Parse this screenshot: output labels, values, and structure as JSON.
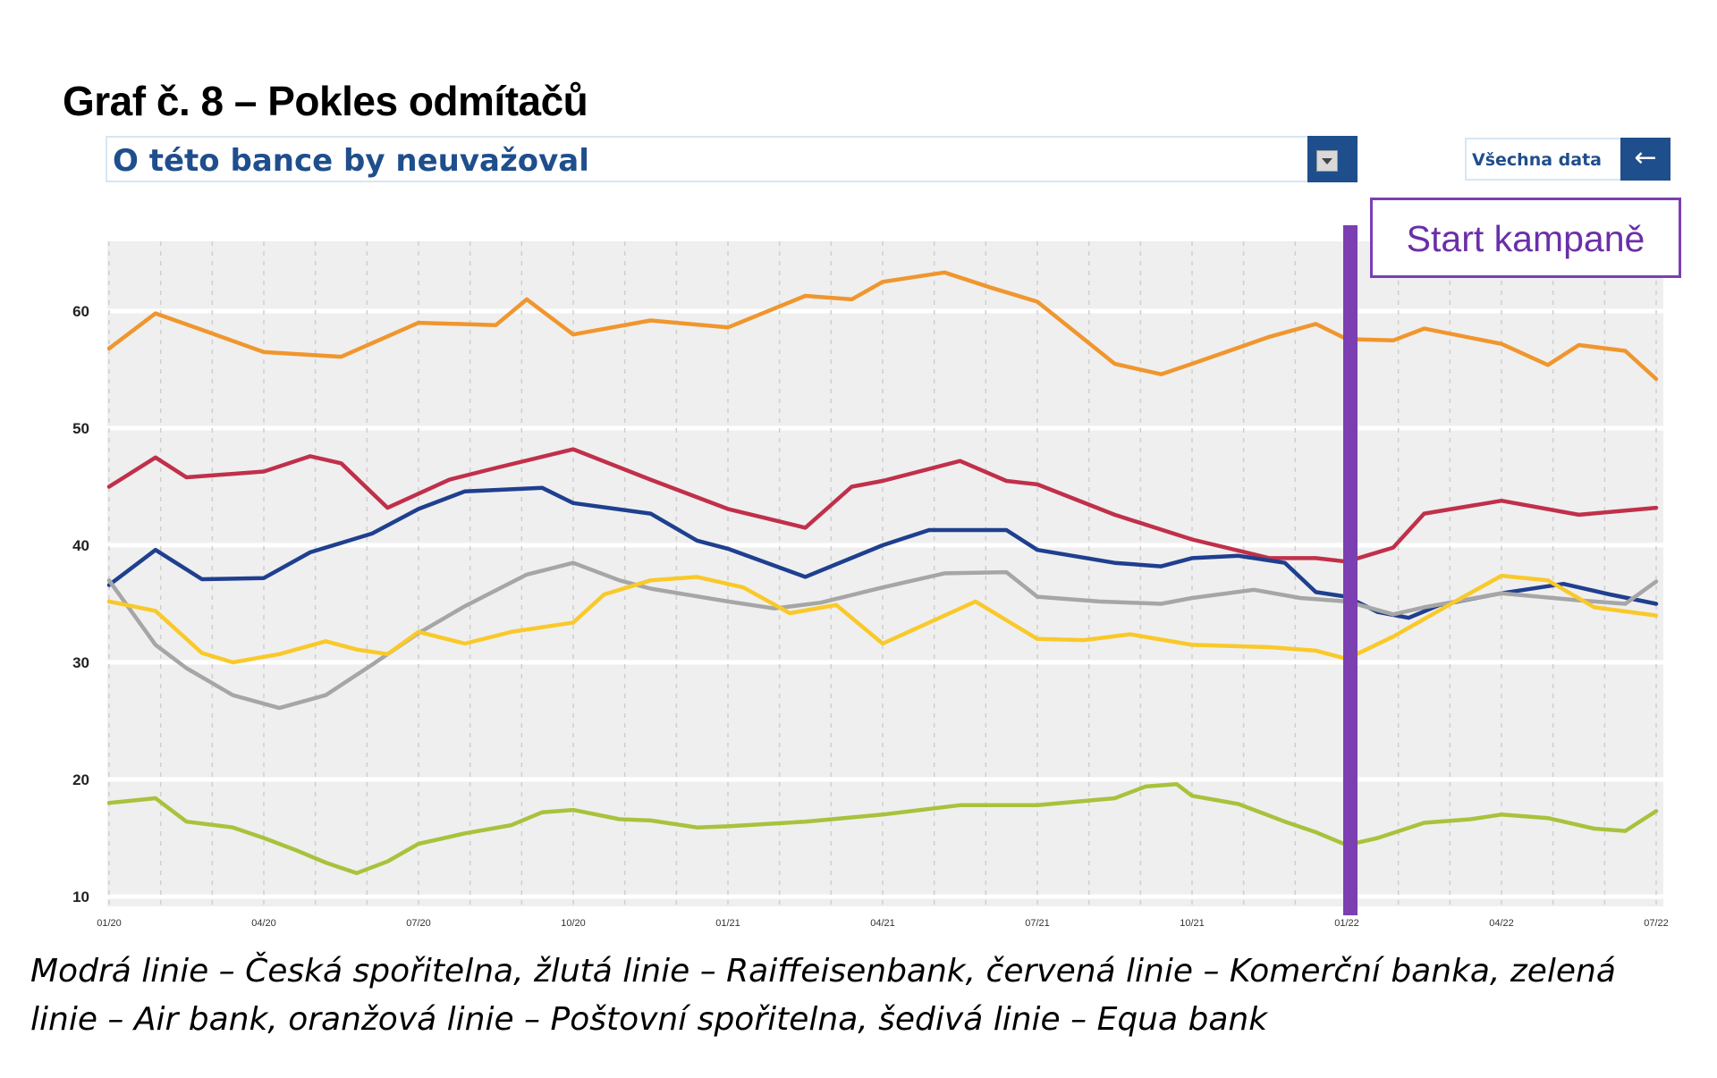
{
  "title": "Graf č. 8 – Pokles odmítačů",
  "dropdown": {
    "value": "O této bance by neuvažoval",
    "button_icon": "dropdown-filter-icon"
  },
  "all_data": {
    "label": "Všechna data",
    "icon": "arrow-left-icon"
  },
  "campaign_label": "Start kampaně",
  "caption": "Modrá linie – Česká spořitelna, žlutá linie – Raiffeisenbank, červená linie – Komerční banka, zelená linie – Air bank, oranžová linie – Poštovní spořitelna, šedivá linie – Equa bank",
  "chart_data": {
    "type": "line",
    "x_tick_labels": [
      "01/20",
      "04/20",
      "07/20",
      "10/20",
      "01/21",
      "04/21",
      "07/21",
      "10/21",
      "01/22",
      "04/22",
      "07/22"
    ],
    "y_ticks": [
      10,
      20,
      30,
      40,
      50,
      60
    ],
    "ylim": [
      10,
      65
    ],
    "grid": true,
    "campaign_marker_at": "01/22",
    "series": [
      {
        "key": "orange",
        "color": "#f0962e",
        "values": [
          [
            0,
            56.8
          ],
          [
            0.3,
            59.8
          ],
          [
            0.6,
            58.4
          ],
          [
            1.0,
            56.5
          ],
          [
            1.5,
            56.1
          ],
          [
            2.0,
            59.0
          ],
          [
            2.5,
            58.8
          ],
          [
            2.7,
            61.0
          ],
          [
            3.0,
            58.0
          ],
          [
            3.5,
            59.2
          ],
          [
            4.0,
            58.6
          ],
          [
            4.5,
            61.3
          ],
          [
            4.8,
            61.0
          ],
          [
            5.0,
            62.5
          ],
          [
            5.4,
            63.3
          ],
          [
            5.7,
            62.0
          ],
          [
            6.0,
            60.8
          ],
          [
            6.5,
            55.5
          ],
          [
            6.8,
            54.6
          ],
          [
            7.0,
            55.5
          ],
          [
            7.5,
            57.8
          ],
          [
            7.8,
            58.9
          ],
          [
            8.0,
            57.6
          ],
          [
            8.3,
            57.5
          ],
          [
            8.5,
            58.5
          ],
          [
            9.0,
            57.2
          ],
          [
            9.3,
            55.4
          ],
          [
            9.5,
            57.1
          ],
          [
            9.8,
            56.6
          ],
          [
            10.0,
            54.2
          ]
        ]
      },
      {
        "key": "red",
        "color": "#c0304a",
        "values": [
          [
            0,
            45.0
          ],
          [
            0.3,
            47.5
          ],
          [
            0.5,
            45.8
          ],
          [
            1.0,
            46.3
          ],
          [
            1.3,
            47.6
          ],
          [
            1.5,
            47.0
          ],
          [
            1.8,
            43.2
          ],
          [
            2.2,
            45.6
          ],
          [
            2.5,
            46.6
          ],
          [
            3.0,
            48.2
          ],
          [
            3.5,
            45.6
          ],
          [
            4.0,
            43.1
          ],
          [
            4.5,
            41.5
          ],
          [
            4.8,
            45.0
          ],
          [
            5.0,
            45.5
          ],
          [
            5.5,
            47.2
          ],
          [
            5.8,
            45.5
          ],
          [
            6.0,
            45.2
          ],
          [
            6.5,
            42.6
          ],
          [
            7.0,
            40.5
          ],
          [
            7.5,
            38.9
          ],
          [
            7.8,
            38.9
          ],
          [
            8.0,
            38.6
          ],
          [
            8.3,
            39.8
          ],
          [
            8.5,
            42.7
          ],
          [
            9.0,
            43.8
          ],
          [
            9.5,
            42.6
          ],
          [
            10.0,
            43.2
          ]
        ]
      },
      {
        "key": "blue",
        "color": "#1f3f8f",
        "values": [
          [
            0,
            36.6
          ],
          [
            0.3,
            39.6
          ],
          [
            0.6,
            37.1
          ],
          [
            1.0,
            37.2
          ],
          [
            1.3,
            39.4
          ],
          [
            1.7,
            41.0
          ],
          [
            2.0,
            43.1
          ],
          [
            2.3,
            44.6
          ],
          [
            2.8,
            44.9
          ],
          [
            3.0,
            43.6
          ],
          [
            3.5,
            42.7
          ],
          [
            3.8,
            40.4
          ],
          [
            4.0,
            39.7
          ],
          [
            4.5,
            37.3
          ],
          [
            5.0,
            40.0
          ],
          [
            5.3,
            41.3
          ],
          [
            5.8,
            41.3
          ],
          [
            6.0,
            39.6
          ],
          [
            6.5,
            38.5
          ],
          [
            6.8,
            38.2
          ],
          [
            7.0,
            38.9
          ],
          [
            7.3,
            39.1
          ],
          [
            7.6,
            38.5
          ],
          [
            7.8,
            36.0
          ],
          [
            8.0,
            35.6
          ],
          [
            8.2,
            34.3
          ],
          [
            8.4,
            33.8
          ],
          [
            8.6,
            34.9
          ],
          [
            9.0,
            35.9
          ],
          [
            9.4,
            36.7
          ],
          [
            9.7,
            35.8
          ],
          [
            10.0,
            35.0
          ]
        ]
      },
      {
        "key": "gray",
        "color": "#a6a6a6",
        "values": [
          [
            0,
            37.0
          ],
          [
            0.3,
            31.5
          ],
          [
            0.5,
            29.5
          ],
          [
            0.8,
            27.2
          ],
          [
            1.1,
            26.1
          ],
          [
            1.4,
            27.2
          ],
          [
            1.7,
            29.8
          ],
          [
            2.0,
            32.5
          ],
          [
            2.3,
            34.8
          ],
          [
            2.7,
            37.5
          ],
          [
            3.0,
            38.5
          ],
          [
            3.3,
            37.0
          ],
          [
            3.5,
            36.3
          ],
          [
            4.0,
            35.2
          ],
          [
            4.3,
            34.6
          ],
          [
            4.6,
            35.1
          ],
          [
            5.0,
            36.4
          ],
          [
            5.4,
            37.6
          ],
          [
            5.8,
            37.7
          ],
          [
            6.0,
            35.6
          ],
          [
            6.4,
            35.2
          ],
          [
            6.8,
            35.0
          ],
          [
            7.0,
            35.5
          ],
          [
            7.4,
            36.2
          ],
          [
            7.7,
            35.5
          ],
          [
            8.0,
            35.2
          ],
          [
            8.3,
            34.1
          ],
          [
            8.5,
            34.7
          ],
          [
            9.0,
            35.9
          ],
          [
            9.5,
            35.3
          ],
          [
            9.8,
            35.0
          ],
          [
            10.0,
            36.9
          ]
        ]
      },
      {
        "key": "yellow",
        "color": "#f9c92a",
        "values": [
          [
            0,
            35.2
          ],
          [
            0.3,
            34.4
          ],
          [
            0.6,
            30.8
          ],
          [
            0.8,
            30.0
          ],
          [
            1.1,
            30.7
          ],
          [
            1.4,
            31.8
          ],
          [
            1.6,
            31.1
          ],
          [
            1.8,
            30.7
          ],
          [
            2.0,
            32.6
          ],
          [
            2.3,
            31.6
          ],
          [
            2.6,
            32.6
          ],
          [
            3.0,
            33.4
          ],
          [
            3.2,
            35.8
          ],
          [
            3.5,
            37.0
          ],
          [
            3.8,
            37.3
          ],
          [
            4.1,
            36.4
          ],
          [
            4.4,
            34.2
          ],
          [
            4.7,
            34.9
          ],
          [
            5.0,
            31.6
          ],
          [
            5.3,
            33.4
          ],
          [
            5.6,
            35.2
          ],
          [
            6.0,
            32.0
          ],
          [
            6.3,
            31.9
          ],
          [
            6.6,
            32.4
          ],
          [
            7.0,
            31.5
          ],
          [
            7.5,
            31.3
          ],
          [
            7.8,
            31.0
          ],
          [
            8.0,
            30.3
          ],
          [
            8.3,
            32.2
          ],
          [
            8.7,
            35.2
          ],
          [
            9.0,
            37.4
          ],
          [
            9.3,
            37.0
          ],
          [
            9.6,
            34.7
          ],
          [
            10.0,
            34.0
          ]
        ]
      },
      {
        "key": "green",
        "color": "#a8c23c",
        "values": [
          [
            0,
            18.0
          ],
          [
            0.3,
            18.4
          ],
          [
            0.5,
            16.4
          ],
          [
            0.8,
            15.9
          ],
          [
            1.0,
            15.0
          ],
          [
            1.2,
            14.0
          ],
          [
            1.4,
            12.9
          ],
          [
            1.6,
            12.0
          ],
          [
            1.8,
            13.0
          ],
          [
            2.0,
            14.5
          ],
          [
            2.3,
            15.4
          ],
          [
            2.6,
            16.1
          ],
          [
            2.8,
            17.2
          ],
          [
            3.0,
            17.4
          ],
          [
            3.3,
            16.6
          ],
          [
            3.5,
            16.5
          ],
          [
            3.8,
            15.9
          ],
          [
            4.0,
            16.0
          ],
          [
            4.5,
            16.4
          ],
          [
            5.0,
            17.0
          ],
          [
            5.5,
            17.8
          ],
          [
            6.0,
            17.8
          ],
          [
            6.5,
            18.4
          ],
          [
            6.7,
            19.4
          ],
          [
            6.9,
            19.6
          ],
          [
            7.0,
            18.6
          ],
          [
            7.3,
            17.9
          ],
          [
            7.6,
            16.4
          ],
          [
            7.8,
            15.5
          ],
          [
            8.0,
            14.4
          ],
          [
            8.2,
            15.0
          ],
          [
            8.5,
            16.3
          ],
          [
            8.8,
            16.6
          ],
          [
            9.0,
            17.0
          ],
          [
            9.3,
            16.7
          ],
          [
            9.6,
            15.8
          ],
          [
            9.8,
            15.6
          ],
          [
            10.0,
            17.3
          ]
        ]
      }
    ]
  },
  "caption_lines": [
    "Modrá linie – Česká spořitelna, žlutá linie – Raiffeisenbank, červená linie – Komerční banka, zelená",
    "linie – Air bank, oranžová linie – Poštovní spořitelna, šedivá linie – Equa bank"
  ]
}
